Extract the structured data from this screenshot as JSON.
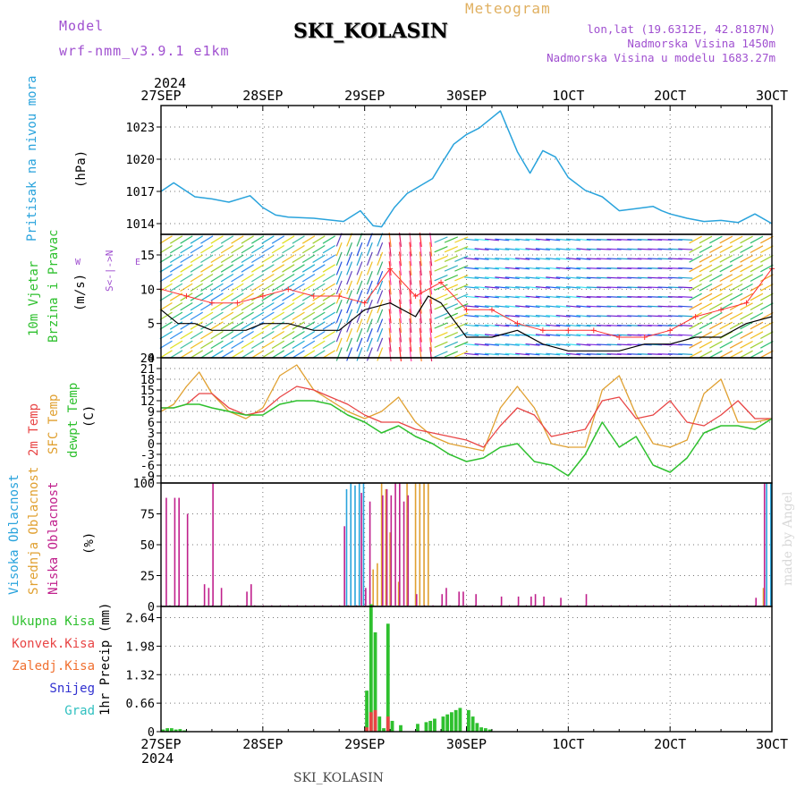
{
  "header": {
    "model_label": "Model",
    "model_name": "wrf-nmm_v3.9.1 e1km",
    "station": "SKI_KOLASIN",
    "meteogram": "Meteogram",
    "lonlat": "lon,lat (19.6312E, 42.8187N)",
    "elevation": "Nadmorska Visina 1450m",
    "model_elevation": "Nadmorska Visina u modelu 1683.27m",
    "year_top": "2024",
    "year_bottom": "2024",
    "footer_station": "SKI_KOLASIN",
    "credit": "made by Angel"
  },
  "time_axis": {
    "labels": [
      "27SEP",
      "28SEP",
      "29SEP",
      "30SEP",
      "1OCT",
      "2OCT",
      "3OCT"
    ],
    "hours_total": 144
  },
  "colors": {
    "pressure": "#29a3dc",
    "wind_speed": "#000000",
    "gust": "#ff3030",
    "t2m": "#e84545",
    "sfc": "#e0a030",
    "dewpt": "#2ec02e",
    "high_cloud": "#29a3dc",
    "mid_cloud": "#e0a030",
    "low_cloud": "#c0208c",
    "total_precip": "#2ec02e",
    "conv_precip": "#e84545"
  },
  "panels": {
    "pressure": {
      "label": "Pritisak na nivou mora",
      "unit": "(hPa)"
    },
    "wind": {
      "label1": "10m Vjetar",
      "label2": "Brzina i Pravac",
      "unit": "(m/s)",
      "compass_ns": "S<-|->N",
      "west": "W",
      "east": "E"
    },
    "temp": {
      "label1": "2m Temp",
      "label2": "SFC Temp",
      "label3": "dewpt Temp",
      "unit": "(C)"
    },
    "cloud": {
      "label1": "Visoka Oblacnost",
      "label2": "Srednja Oblacnost",
      "label3": "Niska Oblacnost",
      "unit": "(%)"
    },
    "precip": {
      "legend": [
        "Ukupna Kisa",
        "Konvek.Kisa",
        "Zaledj.Kisa",
        "Snijeg",
        "Grad"
      ],
      "unit": "1hr Precip (mm)"
    }
  },
  "chart_data": [
    {
      "type": "line",
      "title": "Pritisak na nivou mora",
      "ylabel": "(hPa)",
      "ylim": [
        1013,
        1025
      ],
      "yticks": [
        1014,
        1017,
        1020,
        1023
      ],
      "series": [
        {
          "name": "Pritisak na nivou mora",
          "x": [
            0,
            3,
            8,
            12,
            16,
            21,
            24,
            27,
            30,
            36,
            43,
            47,
            50,
            52,
            55,
            58,
            64,
            66,
            69,
            72,
            75,
            80,
            84,
            87,
            90,
            93,
            96,
            100,
            104,
            108,
            112,
            116,
            118,
            120,
            124,
            128,
            132,
            136,
            140,
            144
          ],
          "values": [
            1017,
            1017.8,
            1016.5,
            1016.3,
            1016,
            1016.6,
            1015.5,
            1014.8,
            1014.6,
            1014.5,
            1014.2,
            1015.2,
            1013.8,
            1013.7,
            1015.5,
            1016.8,
            1018.2,
            1019.5,
            1021.4,
            1022.3,
            1022.9,
            1024.5,
            1020.7,
            1018.7,
            1020.8,
            1020.2,
            1018.3,
            1017.1,
            1016.5,
            1015.2,
            1015.4,
            1015.6,
            1015.2,
            1014.9,
            1014.5,
            1014.2,
            1014.3,
            1014.1,
            1014.9,
            1014.0
          ]
        }
      ]
    },
    {
      "type": "line",
      "title": "10m Vjetar Brzina i Pravac",
      "ylabel": "(m/s)",
      "ylim": [
        0,
        18
      ],
      "yticks": [
        0,
        5,
        10,
        15
      ],
      "series": [
        {
          "name": "Brzina",
          "x": [
            0,
            4,
            8,
            12,
            16,
            20,
            24,
            30,
            36,
            42,
            48,
            54,
            60,
            63,
            66,
            72,
            78,
            84,
            90,
            96,
            102,
            108,
            114,
            120,
            126,
            132,
            138,
            144
          ],
          "values": [
            7,
            5,
            5,
            4,
            4,
            4,
            5,
            5,
            4,
            4,
            7,
            8,
            6,
            9,
            8,
            3,
            3,
            4,
            2,
            1,
            1,
            1,
            2,
            2,
            3,
            3,
            5,
            6
          ]
        },
        {
          "name": "Udar",
          "x": [
            0,
            6,
            12,
            18,
            24,
            30,
            36,
            42,
            48,
            54,
            60,
            66,
            72,
            78,
            84,
            90,
            96,
            102,
            108,
            114,
            120,
            126,
            132,
            138,
            144
          ],
          "values": [
            10,
            9,
            8,
            8,
            9,
            10,
            9,
            9,
            8,
            13,
            9,
            11,
            7,
            7,
            5,
            4,
            4,
            4,
            3,
            3,
            4,
            6,
            7,
            8,
            13
          ]
        }
      ]
    },
    {
      "type": "line",
      "title": "2m Temp / SFC Temp / dewpt Temp",
      "ylabel": "(C)",
      "ylim": [
        -11,
        24
      ],
      "yticks": [
        -9,
        -6,
        -3,
        0,
        3,
        6,
        9,
        12,
        15,
        18,
        21,
        24
      ],
      "series": [
        {
          "name": "2m Temp",
          "x": [
            0,
            3,
            6,
            9,
            12,
            16,
            20,
            24,
            28,
            32,
            36,
            40,
            44,
            48,
            52,
            56,
            60,
            64,
            68,
            72,
            76,
            80,
            84,
            88,
            92,
            96,
            100,
            104,
            108,
            112,
            116,
            120,
            124,
            128,
            132,
            136,
            140,
            144
          ],
          "values": [
            10,
            10,
            11,
            14,
            14,
            10,
            8,
            9,
            13,
            16,
            15,
            13,
            11,
            8,
            6,
            6,
            4,
            3,
            2,
            1,
            -1,
            5,
            10,
            8,
            2,
            3,
            4,
            12,
            13,
            7,
            8,
            12,
            6,
            5,
            8,
            12,
            7,
            7
          ]
        },
        {
          "name": "SFC Temp",
          "x": [
            0,
            3,
            6,
            9,
            12,
            16,
            20,
            24,
            28,
            32,
            36,
            40,
            44,
            48,
            52,
            56,
            60,
            64,
            68,
            72,
            76,
            80,
            84,
            88,
            92,
            96,
            100,
            104,
            108,
            112,
            116,
            120,
            124,
            128,
            132,
            136,
            140,
            144
          ],
          "values": [
            9,
            11,
            16,
            20,
            14,
            9,
            7,
            10,
            19,
            22,
            15,
            12,
            9,
            7,
            9,
            13,
            6,
            2,
            0,
            -1,
            -2,
            10,
            16,
            10,
            0,
            -1,
            -1,
            15,
            19,
            8,
            0,
            -1,
            1,
            14,
            18,
            6,
            6,
            7
          ]
        },
        {
          "name": "dewpt Temp",
          "x": [
            0,
            3,
            6,
            9,
            12,
            16,
            20,
            24,
            28,
            32,
            36,
            40,
            44,
            48,
            52,
            56,
            60,
            64,
            68,
            72,
            76,
            80,
            84,
            88,
            92,
            96,
            100,
            104,
            108,
            112,
            116,
            120,
            124,
            128,
            132,
            136,
            140,
            144
          ],
          "values": [
            10,
            10,
            11,
            11,
            10,
            9,
            8,
            8,
            11,
            12,
            12,
            11,
            8,
            6,
            3,
            5,
            2,
            0,
            -3,
            -5,
            -4,
            -1,
            0,
            -5,
            -6,
            -9,
            -3,
            6,
            -1,
            2,
            -6,
            -8,
            -4,
            3,
            5,
            5,
            4,
            7
          ]
        }
      ]
    },
    {
      "type": "bar",
      "title": "Visoka / Srednja / Niska Oblacnost",
      "ylabel": "(%)",
      "ylim": [
        0,
        100
      ],
      "yticks": [
        0,
        25,
        50,
        75,
        100
      ],
      "series": [
        {
          "name": "Visoka Oblacnost",
          "x": [
            44,
            45,
            46,
            47,
            48,
            143,
            144
          ],
          "values": [
            95,
            100,
            98,
            100,
            100,
            100,
            100
          ]
        },
        {
          "name": "Srednja Oblacnost",
          "x": [
            50,
            51,
            52,
            53,
            54,
            56,
            58,
            60,
            61,
            62,
            63,
            142
          ],
          "values": [
            30,
            35,
            100,
            95,
            60,
            20,
            100,
            100,
            100,
            100,
            100,
            15
          ]
        },
        {
          "name": "Niska Oblacnost",
          "x": [
            1,
            3,
            4,
            6,
            10,
            11,
            12,
            14,
            20,
            21,
            43,
            47,
            48,
            49,
            52,
            53,
            54,
            55,
            56,
            57,
            58,
            60,
            66,
            67,
            70,
            71,
            74,
            80,
            84,
            87,
            88,
            90,
            94,
            100,
            140,
            142
          ],
          "values": [
            88,
            88,
            88,
            75,
            18,
            15,
            100,
            15,
            12,
            18,
            65,
            92,
            15,
            85,
            90,
            95,
            90,
            100,
            100,
            85,
            90,
            10,
            10,
            15,
            12,
            12,
            10,
            8,
            8,
            8,
            10,
            8,
            7,
            10,
            7,
            100
          ]
        }
      ]
    },
    {
      "type": "bar",
      "title": "1hr Precip",
      "ylabel": "1hr Precip (mm)",
      "ylim": [
        0,
        2.9
      ],
      "yticks": [
        0,
        0.66,
        1.32,
        1.98,
        2.64
      ],
      "series": [
        {
          "name": "Ukupna Kisa",
          "x": [
            0,
            1,
            2,
            3,
            4,
            5,
            48,
            49,
            50,
            51,
            52,
            53,
            54,
            56,
            60,
            62,
            63,
            64,
            66,
            67,
            68,
            69,
            70,
            72,
            73,
            74,
            75,
            76,
            77
          ],
          "values": [
            0.05,
            0.08,
            0.08,
            0.05,
            0.06,
            0.03,
            0.95,
            2.95,
            2.3,
            0.35,
            0.08,
            2.5,
            0.25,
            0.15,
            0.18,
            0.22,
            0.25,
            0.3,
            0.35,
            0.4,
            0.45,
            0.5,
            0.55,
            0.5,
            0.35,
            0.2,
            0.1,
            0.08,
            0.05
          ]
        },
        {
          "name": "Konvek.Kisa",
          "x": [
            48,
            49,
            50,
            53
          ],
          "values": [
            0.1,
            0.45,
            0.5,
            0.35
          ]
        }
      ]
    }
  ]
}
